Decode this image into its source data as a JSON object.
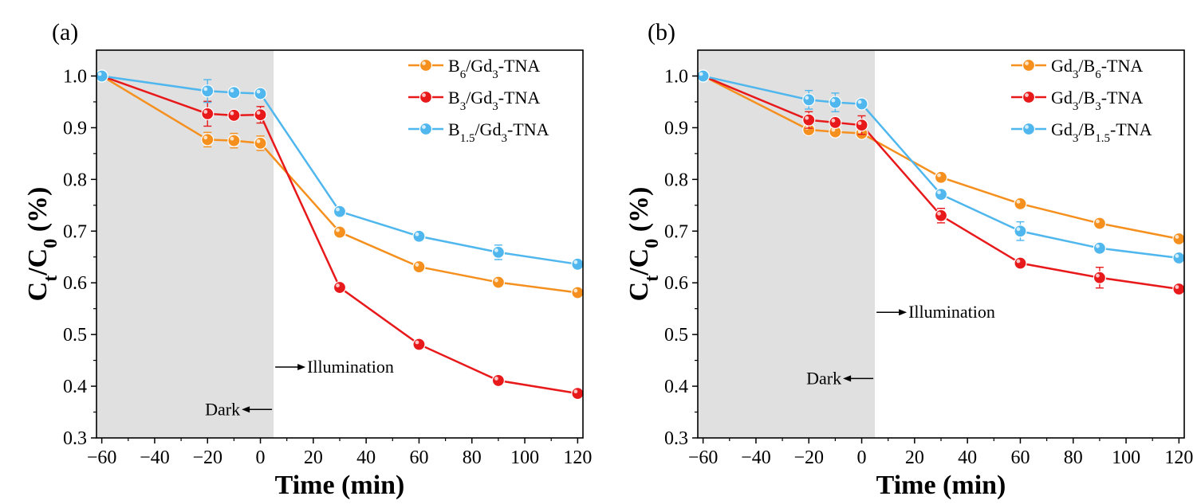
{
  "chart_data": [
    {
      "type": "line",
      "panel_label": "(a)",
      "xlabel": "Time (min)",
      "ylabel_parts": {
        "c1": "C",
        "s1": "t",
        "mid": "/C",
        "s2": "0",
        "end": " (%)"
      },
      "xlim": [
        -62,
        122
      ],
      "ylim": [
        0.3,
        1.05
      ],
      "xticks": [
        -60,
        -40,
        -20,
        0,
        20,
        40,
        60,
        80,
        100,
        120
      ],
      "xtick_labels": [
        "−60",
        "−40",
        "−20",
        "0",
        "20",
        "40",
        "60",
        "80",
        "100",
        "120"
      ],
      "yticks": [
        0.3,
        0.4,
        0.5,
        0.6,
        0.7,
        0.8,
        0.9,
        1.0
      ],
      "ytick_labels": [
        "0.3",
        "0.4",
        "0.5",
        "0.6",
        "0.7",
        "0.8",
        "0.9",
        "1.0"
      ],
      "dark_region": [
        -62,
        5
      ],
      "legend_position": "top-right",
      "annotations": {
        "dark": "Dark",
        "illumination": "Illumination"
      },
      "annotation_positions": {
        "dark_y": 0.355,
        "illum_y": 0.437
      },
      "series": [
        {
          "name": {
            "p1": "B",
            "s1": "6",
            "p2": "/Gd",
            "s2": "3",
            "p3": "-TNA"
          },
          "color": "#f5901e",
          "x": [
            -60,
            -20,
            -10,
            0,
            30,
            60,
            90,
            120
          ],
          "y": [
            1.0,
            0.877,
            0.875,
            0.87,
            0.698,
            0.631,
            0.601,
            0.581
          ],
          "err": [
            0,
            0.014,
            0.014,
            0.014,
            0,
            0,
            0,
            0
          ]
        },
        {
          "name": {
            "p1": "B",
            "s1": "3",
            "p2": "/Gd",
            "s2": "3",
            "p3": "-TNA"
          },
          "color": "#e8191b",
          "x": [
            -60,
            -20,
            -10,
            0,
            30,
            60,
            90,
            120
          ],
          "y": [
            1.0,
            0.927,
            0.924,
            0.925,
            0.591,
            0.481,
            0.411,
            0.386
          ],
          "err": [
            0,
            0.024,
            0,
            0.016,
            0,
            0,
            0,
            0
          ]
        },
        {
          "name": {
            "p1": "B",
            "s1": "1.5",
            "p2": "/Gd",
            "s2": "3",
            "p3": "-TNA"
          },
          "color": "#4fb7ee",
          "x": [
            -60,
            -20,
            -10,
            0,
            30,
            60,
            90,
            120
          ],
          "y": [
            1.0,
            0.971,
            0.968,
            0.966,
            0.738,
            0.69,
            0.659,
            0.636
          ],
          "err": [
            0,
            0.022,
            0,
            0,
            0,
            0,
            0.014,
            0
          ]
        }
      ]
    },
    {
      "type": "line",
      "panel_label": "(b)",
      "xlabel": "Time (min)",
      "ylabel_parts": {
        "c1": "C",
        "s1": "t",
        "mid": "/C",
        "s2": "0",
        "end": " (%)"
      },
      "xlim": [
        -62,
        122
      ],
      "ylim": [
        0.3,
        1.05
      ],
      "xticks": [
        -60,
        -40,
        -20,
        0,
        20,
        40,
        60,
        80,
        100,
        120
      ],
      "xtick_labels": [
        "−60",
        "−40",
        "−20",
        "0",
        "20",
        "40",
        "60",
        "80",
        "100",
        "120"
      ],
      "yticks": [
        0.3,
        0.4,
        0.5,
        0.6,
        0.7,
        0.8,
        0.9,
        1.0
      ],
      "ytick_labels": [
        "0.3",
        "0.4",
        "0.5",
        "0.6",
        "0.7",
        "0.8",
        "0.9",
        "1.0"
      ],
      "dark_region": [
        -62,
        5
      ],
      "legend_position": "top-right",
      "annotations": {
        "dark": "Dark",
        "illumination": "Illumination"
      },
      "annotation_positions": {
        "dark_y": 0.415,
        "illum_y": 0.543
      },
      "series": [
        {
          "name": {
            "p1": "Gd",
            "s1": "3",
            "p2": "/B",
            "s2": "6",
            "p3": "-TNA"
          },
          "color": "#f5901e",
          "x": [
            -60,
            -20,
            -10,
            0,
            30,
            60,
            90,
            120
          ],
          "y": [
            1.0,
            0.896,
            0.892,
            0.889,
            0.804,
            0.753,
            0.715,
            0.685
          ],
          "err": [
            0,
            0.01,
            0,
            0,
            0,
            0,
            0,
            0
          ]
        },
        {
          "name": {
            "p1": "Gd",
            "s1": "3",
            "p2": "/B",
            "s2": "3",
            "p3": "-TNA"
          },
          "color": "#e8191b",
          "x": [
            -60,
            -20,
            -10,
            0,
            30,
            60,
            90,
            120
          ],
          "y": [
            1.0,
            0.915,
            0.91,
            0.905,
            0.73,
            0.638,
            0.61,
            0.588
          ],
          "err": [
            0,
            0.016,
            0,
            0.018,
            0.014,
            0,
            0.02,
            0
          ]
        },
        {
          "name": {
            "p1": "Gd",
            "s1": "3",
            "p2": "/B",
            "s2": "1.5",
            "p3": "-TNA"
          },
          "color": "#4fb7ee",
          "x": [
            -60,
            -20,
            -10,
            0,
            30,
            60,
            90,
            120
          ],
          "y": [
            1.0,
            0.954,
            0.949,
            0.946,
            0.771,
            0.7,
            0.667,
            0.648
          ],
          "err": [
            0,
            0.018,
            0.018,
            0,
            0,
            0.018,
            0,
            0
          ]
        }
      ]
    }
  ]
}
